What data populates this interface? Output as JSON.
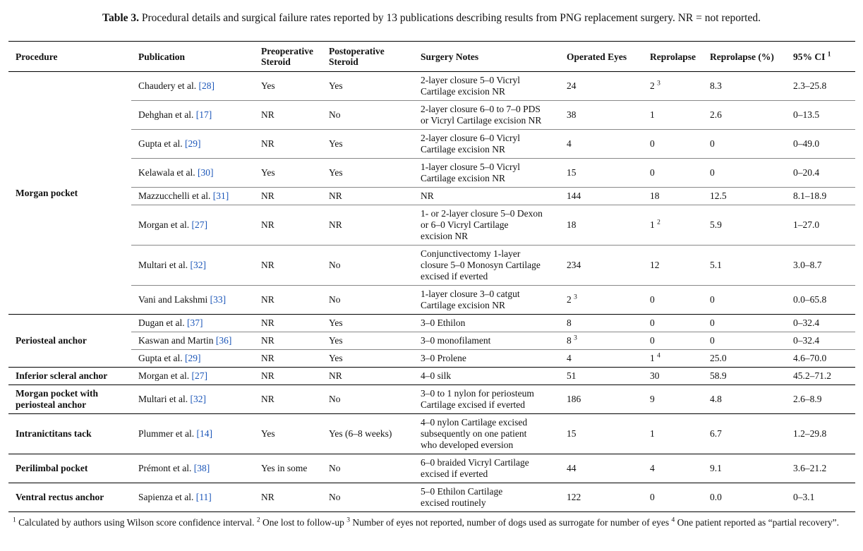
{
  "caption": {
    "label": "Table 3.",
    "text": "Procedural details and surgical failure rates reported by 13 publications describing results from PNG replacement surgery. NR = not reported."
  },
  "headers": {
    "procedure": "Procedure",
    "publication": "Publication",
    "preop_1": "Preoperative",
    "preop_2": "Steroid",
    "postop_1": "Postoperative",
    "postop_2": "Steroid",
    "notes": "Surgery Notes",
    "eyes": "Operated Eyes",
    "reprolapse": "Reprolapse",
    "reprolapse_pct": "Reprolapse (%)",
    "ci": "95% CI",
    "ci_sup": "1"
  },
  "groups": {
    "morgan": "Morgan pocket",
    "periosteal": "Periosteal anchor",
    "inferior": "Inferior scleral anchor",
    "morgan_peri_1": "Morgan pocket with",
    "morgan_peri_2": "periosteal anchor",
    "intranictitans": "Intranictitans tack",
    "perilimbal": "Perilimbal pocket",
    "ventral": "Ventral rectus anchor"
  },
  "rows": [
    {
      "author": "Chaudery et al.",
      "cite": "[28]",
      "pre": "Yes",
      "post": "Yes",
      "notes": [
        "2-layer closure 5–0 Vicryl",
        "Cartilage excision NR"
      ],
      "eyes": "24",
      "eyes_sup": "",
      "rep": "2",
      "rep_sup": "3",
      "pct": "8.3",
      "ci": "2.3–25.8"
    },
    {
      "author": "Dehghan et al.",
      "cite": "[17]",
      "pre": "NR",
      "post": "No",
      "notes": [
        "2-layer closure 6–0 to 7–0 PDS",
        "or Vicryl Cartilage excision NR"
      ],
      "eyes": "38",
      "eyes_sup": "",
      "rep": "1",
      "rep_sup": "",
      "pct": "2.6",
      "ci": "0–13.5"
    },
    {
      "author": "Gupta et al.",
      "cite": "[29]",
      "pre": "NR",
      "post": "Yes",
      "notes": [
        "2-layer closure 6–0 Vicryl",
        "Cartilage excision NR"
      ],
      "eyes": "4",
      "eyes_sup": "",
      "rep": "0",
      "rep_sup": "",
      "pct": "0",
      "ci": "0–49.0"
    },
    {
      "author": "Kelawala et al.",
      "cite": "[30]",
      "pre": "Yes",
      "post": "Yes",
      "notes": [
        "1-layer closure 5–0 Vicryl",
        "Cartilage excision NR"
      ],
      "eyes": "15",
      "eyes_sup": "",
      "rep": "0",
      "rep_sup": "",
      "pct": "0",
      "ci": "0–20.4"
    },
    {
      "author": "Mazzucchelli et al.",
      "cite": "[31]",
      "pre": "NR",
      "post": "NR",
      "notes": [
        "NR"
      ],
      "eyes": "144",
      "eyes_sup": "",
      "rep": "18",
      "rep_sup": "",
      "pct": "12.5",
      "ci": "8.1–18.9"
    },
    {
      "author": "Morgan et al.",
      "cite": "[27]",
      "pre": "NR",
      "post": "NR",
      "notes": [
        "1- or 2-layer closure 5–0 Dexon",
        "or 6–0 Vicryl Cartilage",
        "excision NR"
      ],
      "eyes": "18",
      "eyes_sup": "",
      "rep": "1",
      "rep_sup": "2",
      "pct": "5.9",
      "ci": "1–27.0"
    },
    {
      "author": "Multari et al.",
      "cite": "[32]",
      "pre": "NR",
      "post": "No",
      "notes": [
        "Conjunctivectomy 1-layer",
        "closure 5–0 Monosyn Cartilage",
        "excised if everted"
      ],
      "eyes": "234",
      "eyes_sup": "",
      "rep": "12",
      "rep_sup": "",
      "pct": "5.1",
      "ci": "3.0–8.7"
    },
    {
      "author": "Vani and Lakshmi",
      "cite": "[33]",
      "pre": "NR",
      "post": "No",
      "notes": [
        "1-layer closure 3–0 catgut",
        "Cartilage excision NR"
      ],
      "eyes": "2",
      "eyes_sup": "3",
      "rep": "0",
      "rep_sup": "",
      "pct": "0",
      "ci": "0.0–65.8"
    },
    {
      "author": "Dugan et al.",
      "cite": "[37]",
      "pre": "NR",
      "post": "Yes",
      "notes": [
        "3–0 Ethilon"
      ],
      "eyes": "8",
      "eyes_sup": "",
      "rep": "0",
      "rep_sup": "",
      "pct": "0",
      "ci": "0–32.4"
    },
    {
      "author": "Kaswan and Martin",
      "cite": "[36]",
      "pre": "NR",
      "post": "Yes",
      "notes": [
        "3–0 monofilament"
      ],
      "eyes": "8",
      "eyes_sup": "3",
      "rep": "0",
      "rep_sup": "",
      "pct": "0",
      "ci": "0–32.4"
    },
    {
      "author": "Gupta et al.",
      "cite": "[29]",
      "pre": "NR",
      "post": "Yes",
      "notes": [
        "3–0 Prolene"
      ],
      "eyes": "4",
      "eyes_sup": "",
      "rep": "1",
      "rep_sup": "4",
      "pct": "25.0",
      "ci": "4.6–70.0"
    },
    {
      "author": "Morgan et al.",
      "cite": "[27]",
      "pre": "NR",
      "post": "NR",
      "notes": [
        "4–0 silk"
      ],
      "eyes": "51",
      "eyes_sup": "",
      "rep": "30",
      "rep_sup": "",
      "pct": "58.9",
      "ci": "45.2–71.2"
    },
    {
      "author": "Multari et al.",
      "cite": "[32]",
      "pre": "NR",
      "post": "No",
      "notes": [
        "3–0 to 1 nylon for periosteum",
        "Cartilage excised if everted"
      ],
      "eyes": "186",
      "eyes_sup": "",
      "rep": "9",
      "rep_sup": "",
      "pct": "4.8",
      "ci": "2.6–8.9"
    },
    {
      "author": "Plummer et al.",
      "cite": "[14]",
      "pre": "Yes",
      "post": "Yes (6–8 weeks)",
      "notes": [
        "4–0 nylon Cartilage excised",
        "subsequently on one patient",
        "who developed eversion"
      ],
      "eyes": "15",
      "eyes_sup": "",
      "rep": "1",
      "rep_sup": "",
      "pct": "6.7",
      "ci": "1.2–29.8"
    },
    {
      "author": "Prémont et al.",
      "cite": "[38]",
      "pre": "Yes in some",
      "post": "No",
      "notes": [
        "6–0 braided Vicryl Cartilage",
        "excised if everted"
      ],
      "eyes": "44",
      "eyes_sup": "",
      "rep": "4",
      "rep_sup": "",
      "pct": "9.1",
      "ci": "3.6–21.2"
    },
    {
      "author": "Sapienza et al.",
      "cite": "[11]",
      "pre": "NR",
      "post": "No",
      "notes": [
        "5–0 Ethilon Cartilage",
        "excised routinely"
      ],
      "eyes": "122",
      "eyes_sup": "",
      "rep": "0",
      "rep_sup": "",
      "pct": "0.0",
      "ci": "0–3.1"
    }
  ],
  "footnote": {
    "s1": "1",
    "t1": " Calculated by authors using Wilson score confidence interval. ",
    "s2": "2",
    "t2": " One lost to follow-up ",
    "s3": "3",
    "t3": " Number of eyes not reported, number of dogs used as surrogate for number of eyes ",
    "s4": "4",
    "t4": " One patient reported as “partial recovery”."
  }
}
